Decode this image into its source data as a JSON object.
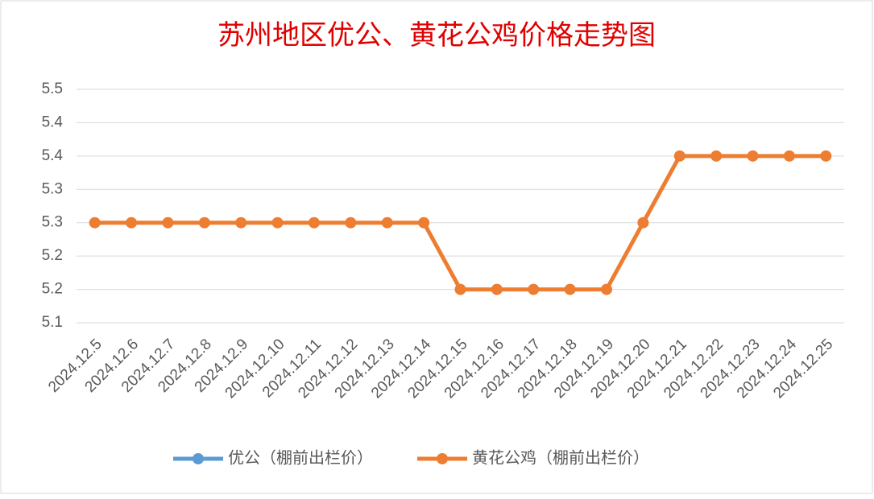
{
  "chart_data": {
    "type": "line",
    "title": "苏州地区优公、黄花公鸡价格走势图",
    "categories": [
      "2024.12.5",
      "2024.12.6",
      "2024.12.7",
      "2024.12.8",
      "2024.12.9",
      "2024.12.10",
      "2024.12.11",
      "2024.12.12",
      "2024.12.13",
      "2024.12.14",
      "2024.12.15",
      "2024.12.16",
      "2024.12.17",
      "2024.12.18",
      "2024.12.19",
      "2024.12.20",
      "2024.12.21",
      "2024.12.22",
      "2024.12.23",
      "2024.12.24",
      "2024.12.25"
    ],
    "series": [
      {
        "name": "优公（棚前出栏价）",
        "color": "#5b9bd5",
        "values": [
          null,
          null,
          null,
          null,
          null,
          null,
          null,
          null,
          null,
          null,
          null,
          null,
          null,
          null,
          null,
          null,
          null,
          null,
          null,
          null,
          null
        ]
      },
      {
        "name": "黄花公鸡（棚前出栏价）",
        "color": "#ed7d31",
        "values": [
          5.25,
          5.25,
          5.25,
          5.25,
          5.25,
          5.25,
          5.25,
          5.25,
          5.25,
          5.25,
          5.15,
          5.15,
          5.15,
          5.15,
          5.15,
          5.25,
          5.35,
          5.35,
          5.35,
          5.35,
          5.35
        ]
      }
    ],
    "ylim": [
      5.1,
      5.45
    ],
    "yticks": [
      5.1,
      {
        "value": 5.15,
        "label": "5.2"
      },
      5.2,
      {
        "value": 5.25,
        "label": "5.3"
      },
      5.3,
      {
        "value": 5.35,
        "label": "5.4"
      },
      5.4,
      {
        "value": 5.45,
        "label": "5.5"
      }
    ],
    "grid": true,
    "legend": "bottom"
  }
}
